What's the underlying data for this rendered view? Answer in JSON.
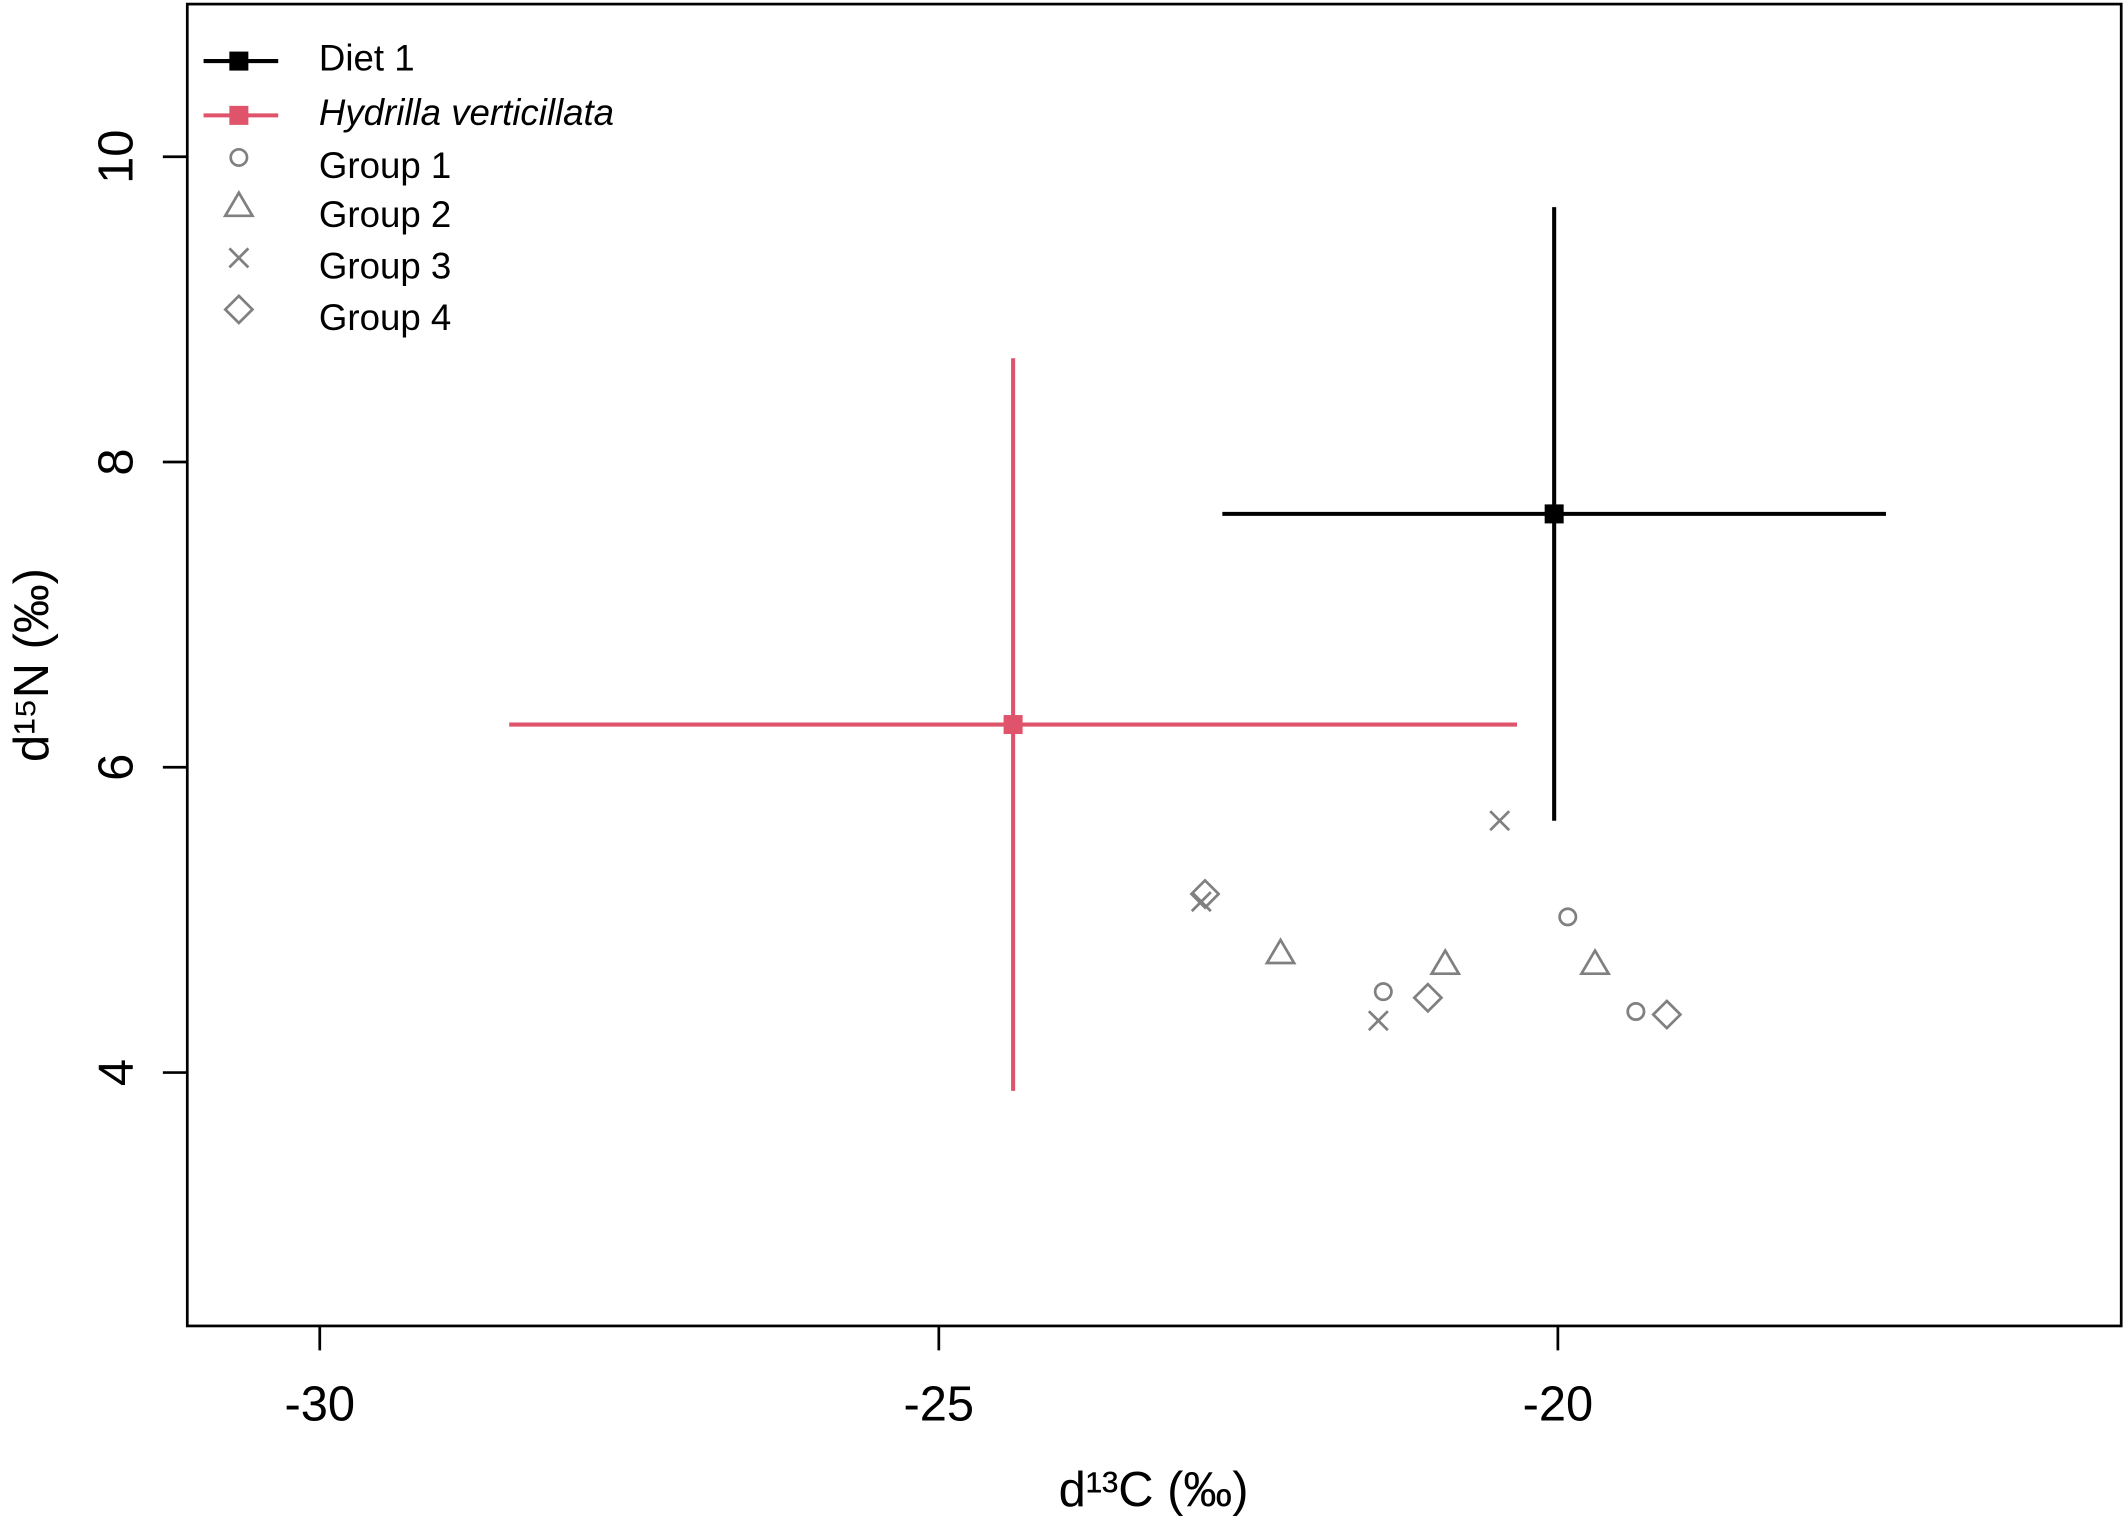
{
  "chart_data": {
    "type": "scatter",
    "xlabel": "d¹³C (‰)",
    "ylabel": "d¹⁵N (‰)",
    "xlim": [
      -31.07,
      -15.45
    ],
    "xticks": [
      -30,
      -25,
      -20
    ],
    "ylim": [
      2.34,
      11.0
    ],
    "yticks": [
      4,
      6,
      8,
      10
    ],
    "legend": "top-left",
    "series": [
      {
        "name": "Diet 1",
        "color": "#000000",
        "marker": "square",
        "x": [
          -20.03
        ],
        "values": [
          7.66
        ],
        "xerr": [
          2.68
        ],
        "yerr": [
          2.01
        ]
      },
      {
        "name": "Hydrilla verticillata",
        "color": "#df536b",
        "marker": "square",
        "italic": true,
        "x": [
          -24.4
        ],
        "values": [
          6.28
        ],
        "xerr": [
          4.07
        ],
        "yerr": [
          2.4
        ]
      },
      {
        "name": "Group 1",
        "color": "#808080",
        "marker": "circle",
        "x": [
          -21.41,
          -19.92,
          -19.37
        ],
        "values": [
          4.53,
          5.02,
          4.4
        ]
      },
      {
        "name": "Group 2",
        "color": "#808080",
        "marker": "triangle",
        "x": [
          -22.24,
          -20.91,
          -19.7
        ],
        "values": [
          4.78,
          4.71,
          4.71
        ]
      },
      {
        "name": "Group 3",
        "color": "#808080",
        "marker": "cross",
        "x": [
          -22.88,
          -21.45,
          -20.47
        ],
        "values": [
          5.12,
          4.34,
          5.65
        ]
      },
      {
        "name": "Group 4",
        "color": "#808080",
        "marker": "diamond",
        "x": [
          -22.85,
          -21.05,
          -19.12
        ],
        "values": [
          5.17,
          4.49,
          4.38
        ]
      }
    ]
  }
}
